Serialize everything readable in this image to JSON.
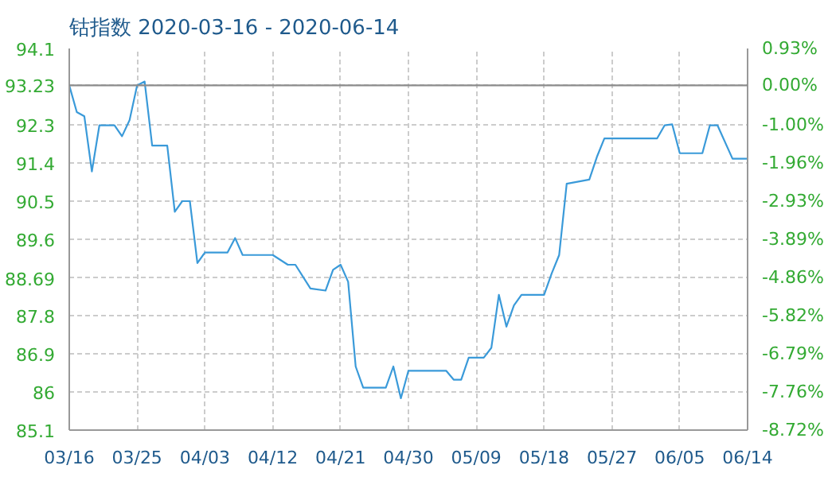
{
  "chart_data": {
    "type": "line",
    "title": "钴指数 2020-03-16 - 2020-06-14",
    "x": [
      "2020-03-16",
      "2020-03-17",
      "2020-03-18",
      "2020-03-19",
      "2020-03-20",
      "2020-03-22",
      "2020-03-23",
      "2020-03-24",
      "2020-03-25",
      "2020-03-26",
      "2020-03-27",
      "2020-03-29",
      "2020-03-30",
      "2020-03-31",
      "2020-04-01",
      "2020-04-02",
      "2020-04-03",
      "2020-04-06",
      "2020-04-07",
      "2020-04-08",
      "2020-04-12",
      "2020-04-14",
      "2020-04-15",
      "2020-04-17",
      "2020-04-19",
      "2020-04-20",
      "2020-04-21",
      "2020-04-22",
      "2020-04-23",
      "2020-04-24",
      "2020-04-27",
      "2020-04-28",
      "2020-04-29",
      "2020-04-30",
      "2020-05-05",
      "2020-05-06",
      "2020-05-07",
      "2020-05-08",
      "2020-05-10",
      "2020-05-11",
      "2020-05-12",
      "2020-05-13",
      "2020-05-14",
      "2020-05-15",
      "2020-05-18",
      "2020-05-19",
      "2020-05-20",
      "2020-05-21",
      "2020-05-24",
      "2020-05-25",
      "2020-05-26",
      "2020-06-02",
      "2020-06-03",
      "2020-06-04",
      "2020-06-05",
      "2020-06-08",
      "2020-06-09",
      "2020-06-10",
      "2020-06-12",
      "2020-06-14"
    ],
    "series": [
      {
        "color": "#3a9ad9",
        "values": [
          93.23,
          92.6,
          92.5,
          91.2,
          92.29,
          92.29,
          92.03,
          92.41,
          93.23,
          93.32,
          91.81,
          91.81,
          90.25,
          90.5,
          90.5,
          89.04,
          89.29,
          89.29,
          89.63,
          89.23,
          89.23,
          89.0,
          89.0,
          88.44,
          88.39,
          88.88,
          89.0,
          88.6,
          86.6,
          86.1,
          86.1,
          86.6,
          85.85,
          86.5,
          86.5,
          86.29,
          86.29,
          86.81,
          86.81,
          87.04,
          88.29,
          87.54,
          88.04,
          88.29,
          88.29,
          88.79,
          89.23,
          90.91,
          91.01,
          91.54,
          91.98,
          91.98,
          92.29,
          92.31,
          91.63,
          91.63,
          92.29,
          92.29,
          91.5,
          91.5
        ]
      }
    ],
    "xlim": [
      "2020-03-16",
      "2020-06-14"
    ],
    "xticks": [
      {
        "value": "2020-03-16",
        "label": "03/16"
      },
      {
        "value": "2020-03-25",
        "label": "03/25"
      },
      {
        "value": "2020-04-03",
        "label": "04/03"
      },
      {
        "value": "2020-04-12",
        "label": "04/12"
      },
      {
        "value": "2020-04-21",
        "label": "04/21"
      },
      {
        "value": "2020-04-30",
        "label": "04/30"
      },
      {
        "value": "2020-05-09",
        "label": "05/09"
      },
      {
        "value": "2020-05-18",
        "label": "05/18"
      },
      {
        "value": "2020-05-27",
        "label": "05/27"
      },
      {
        "value": "2020-06-05",
        "label": "06/05"
      },
      {
        "value": "2020-06-14",
        "label": "06/14"
      }
    ],
    "ylim": [
      85.1,
      94.1
    ],
    "yticks": [
      85.1,
      86,
      86.9,
      87.8,
      88.69,
      89.6,
      90.5,
      91.4,
      92.3,
      93.23,
      94.1
    ],
    "y2lim": [
      -8.72,
      0.93
    ],
    "y2ticks": [
      {
        "value": -8.72,
        "label": "-8.72%"
      },
      {
        "value": -7.76,
        "label": "-7.76%"
      },
      {
        "value": -6.79,
        "label": "-6.79%"
      },
      {
        "value": -5.82,
        "label": "-5.82%"
      },
      {
        "value": -4.86,
        "label": "-4.86%"
      },
      {
        "value": -3.89,
        "label": "-3.89%"
      },
      {
        "value": -2.93,
        "label": "-2.93%"
      },
      {
        "value": -1.96,
        "label": "-1.96%"
      },
      {
        "value": -1,
        "label": "-1.00%"
      },
      {
        "value": 0,
        "label": "0.00%"
      },
      {
        "value": 0.93,
        "label": "0.93%"
      }
    ],
    "ref_lines": [
      {
        "axis": "y",
        "value": 93.23,
        "color": "#8c8c8c"
      }
    ],
    "grid": true,
    "line_style": "solid",
    "marker": "none"
  }
}
